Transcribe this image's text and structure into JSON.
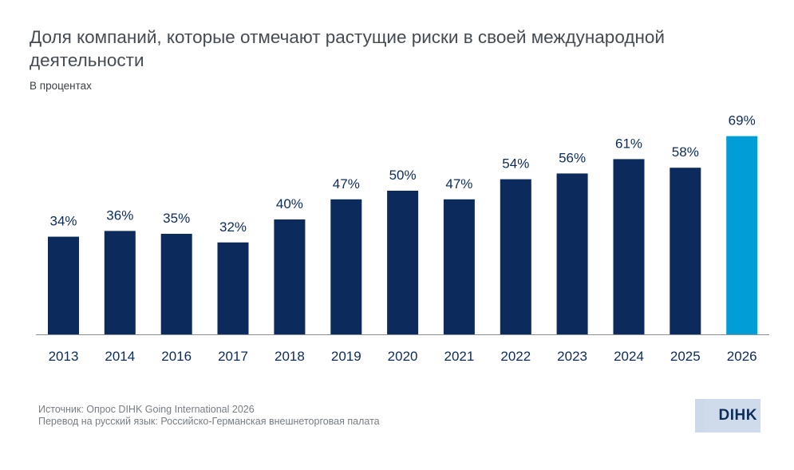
{
  "header": {
    "title": "Доля компаний, которые отмечают растущие риски в своей международной деятельности",
    "subtitle": "В процентах"
  },
  "footer": {
    "source_line1": "Источник: Опрос DIHK Going International 2026",
    "source_line2": "Перевод на русский язык: Российско-Германская внешнеторговая палата",
    "logo_text": "DIHK"
  },
  "colors": {
    "bar_default": "#0c2b5c",
    "bar_highlight": "#009dd7",
    "label": "#0c2b5c",
    "axis": "#8a8f94"
  },
  "chart_data": {
    "type": "bar",
    "title": "Доля компаний, которые отмечают растущие риски в своей международной деятельности",
    "subtitle": "В процентах",
    "xlabel": "",
    "ylabel": "",
    "categories": [
      "2013",
      "2014",
      "2016",
      "2017",
      "2018",
      "2019",
      "2020",
      "2021",
      "2022",
      "2023",
      "2024",
      "2025",
      "2026"
    ],
    "values": [
      34,
      36,
      35,
      32,
      40,
      47,
      50,
      47,
      54,
      56,
      61,
      58,
      69
    ],
    "data_labels": [
      "34%",
      "36%",
      "35%",
      "32%",
      "40%",
      "47%",
      "50%",
      "47%",
      "54%",
      "56%",
      "61%",
      "58%",
      "69%"
    ],
    "highlight_category": "2026",
    "ylim": [
      0,
      69
    ],
    "grid": false,
    "legend": "none"
  }
}
